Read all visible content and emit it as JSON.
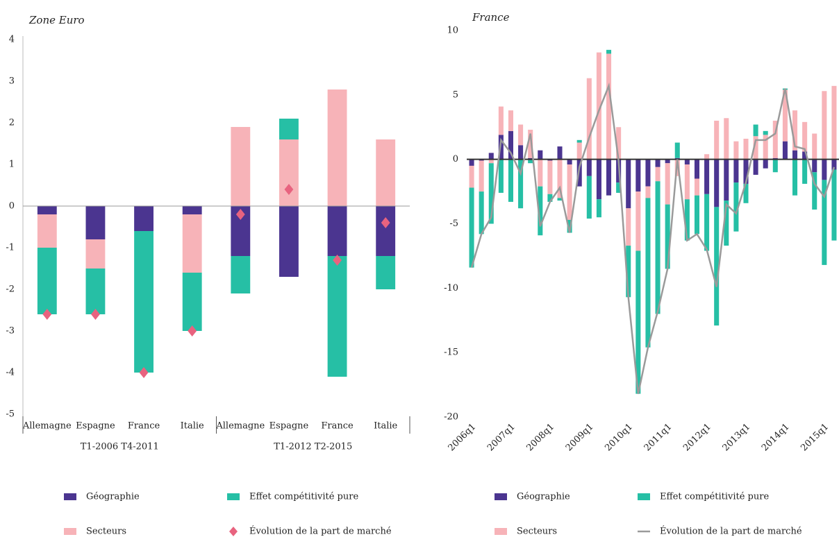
{
  "chart_data": [
    {
      "type": "bar",
      "title": "Zone Euro",
      "categories": [
        "Allemagne",
        "Espagne",
        "France",
        "Italie",
        "Allemagne",
        "Espagne",
        "France",
        "Italie"
      ],
      "groups": [
        "T1-2006 T4-2011",
        "T1-2012 T2-2015"
      ],
      "ylim": [
        -5,
        4
      ],
      "yticks": [
        -5,
        -4,
        -3,
        -2,
        -1,
        0,
        1,
        2,
        3,
        4
      ],
      "series": [
        {
          "name": "Géographie",
          "type": "bar",
          "color": "#4b3590",
          "values": [
            -0.2,
            -0.8,
            -0.6,
            -0.2,
            -1.2,
            -1.7,
            -1.2,
            -1.2
          ]
        },
        {
          "name": "Secteurs",
          "type": "bar",
          "color": "#f7b3b8",
          "values": [
            -0.8,
            -0.7,
            0,
            -1.4,
            1.9,
            1.6,
            2.8,
            1.6
          ]
        },
        {
          "name": "Effet compétitivité pure",
          "type": "bar",
          "color": "#26bfa5",
          "values": [
            -1.6,
            -1.1,
            -3.4,
            -1.4,
            -0.9,
            0.5,
            -2.9,
            -0.8
          ]
        },
        {
          "name": "Évolution de la part de marché",
          "type": "scatter",
          "color": "#e8637f",
          "values": [
            -2.6,
            -2.6,
            -4.0,
            -3.0,
            -0.2,
            0.4,
            -1.3,
            -0.4
          ]
        }
      ]
    },
    {
      "type": "bar",
      "title": "France",
      "categories": [
        "2006q1",
        null,
        null,
        null,
        "2007q1",
        null,
        null,
        null,
        "2008q1",
        null,
        null,
        null,
        "2009q1",
        null,
        null,
        null,
        "2010q1",
        null,
        null,
        null,
        "2011q1",
        null,
        null,
        null,
        "2012q1",
        null,
        null,
        null,
        "2013q1",
        null,
        null,
        null,
        "2014q1",
        null,
        null,
        null,
        "2015q1",
        null
      ],
      "ylim": [
        -20,
        10
      ],
      "yticks": [
        -20,
        -15,
        -10,
        -5,
        0,
        5,
        10
      ],
      "series": [
        {
          "name": "Géographie",
          "type": "bar",
          "color": "#4b3590",
          "values": [
            -0.5,
            -0.1,
            0.5,
            1.9,
            2.2,
            1.1,
            0.1,
            0.7,
            -0.1,
            1.0,
            -0.4,
            -2.1,
            -1.3,
            -3.1,
            -2.8,
            -1.8,
            -3.8,
            -2.5,
            -2.1,
            -0.6,
            -0.3,
            0.1,
            -0.4,
            -1.5,
            -2.7,
            -3.7,
            -3.2,
            -1.8,
            -1.9,
            -1.2,
            -0.7,
            0.1,
            1.4,
            0.7,
            0.6,
            -1.0,
            -1.6,
            -0.8
          ]
        },
        {
          "name": "Secteurs",
          "type": "bar",
          "color": "#f7b3b8",
          "values": [
            -1.7,
            -2.4,
            -0.3,
            2.2,
            1.6,
            1.6,
            2.2,
            -2.1,
            -2.6,
            -3.0,
            -4.3,
            1.3,
            6.3,
            8.3,
            8.2,
            2.5,
            -2.9,
            -4.6,
            -0.9,
            -1.1,
            -3.2,
            -1.3,
            -2.7,
            -1.3,
            0.4,
            3.0,
            3.2,
            1.4,
            1.6,
            1.8,
            1.9,
            2.9,
            4.0,
            3.1,
            2.3,
            2.0,
            5.3,
            5.7
          ]
        },
        {
          "name": "Effet compétitivité pure",
          "type": "bar",
          "color": "#26bfa5",
          "values": [
            -6.2,
            -3.3,
            -4.7,
            -2.6,
            -3.3,
            -3.8,
            -0.3,
            -3.8,
            -0.6,
            -0.2,
            -1.0,
            0.2,
            -3.3,
            -1.4,
            0.3,
            -0.8,
            -4.0,
            -11.1,
            -11.6,
            -10.3,
            -5.0,
            1.2,
            -3.2,
            -3.0,
            -4.4,
            -9.2,
            -3.5,
            -3.8,
            -1.5,
            0.9,
            0.3,
            -1.0,
            0.1,
            -2.8,
            -1.9,
            -2.9,
            -6.6,
            -5.5
          ]
        },
        {
          "name": "Évolution de la part de marché",
          "type": "line",
          "color": "#9a9a9a",
          "values": [
            -8.4,
            -5.8,
            -4.5,
            1.5,
            0.5,
            -1.1,
            2.0,
            -5.2,
            -3.3,
            -2.2,
            -5.7,
            -0.6,
            1.7,
            3.8,
            5.7,
            -0.1,
            -10.7,
            -18.2,
            -14.6,
            -11.8,
            -8.5,
            0.0,
            -6.3,
            -5.8,
            -7.0,
            -9.9,
            -3.5,
            -4.2,
            -1.8,
            1.5,
            1.5,
            2.0,
            5.5,
            1.0,
            0.8,
            -1.9,
            -2.9,
            -0.6
          ]
        }
      ]
    }
  ]
}
